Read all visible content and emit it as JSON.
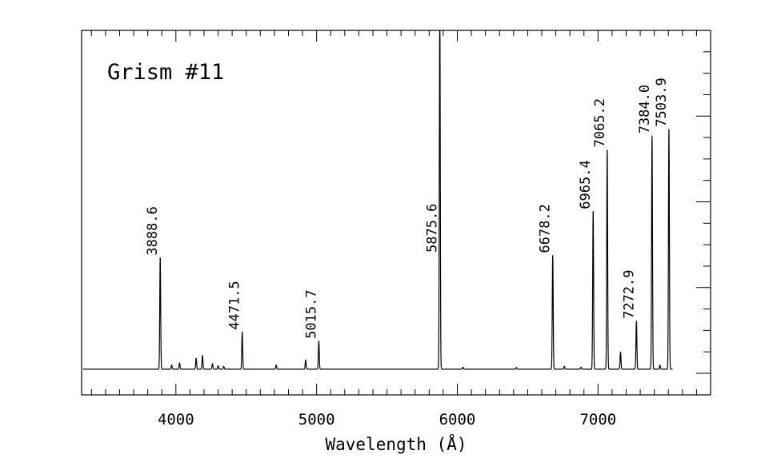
{
  "chart_data": {
    "type": "line",
    "title": "",
    "annotation": "Grism #11",
    "xlabel": "Wavelength (Å)",
    "ylabel": "",
    "xlim": [
      3330,
      7800
    ],
    "ylim": [
      -0.02,
      1.0
    ],
    "x_ticks": [
      4000,
      5000,
      6000,
      7000
    ],
    "x_tick_labels": [
      "4000",
      "5000",
      "6000",
      "7000"
    ],
    "x_minor_step": 100,
    "y_ticks": [
      0.0,
      0.0625,
      0.125,
      0.1875,
      0.25,
      0.3125,
      0.375,
      0.4375,
      0.5,
      0.5625,
      0.625,
      0.6875,
      0.75,
      0.8125,
      0.875,
      0.9375,
      1.0
    ],
    "y_tick_labels_shown": false,
    "grid": false,
    "continuum": 0.012,
    "emission_lines": [
      {
        "wavelength": 3888.6,
        "peak": 0.325,
        "label": "3888.6"
      },
      {
        "wavelength": 4471.5,
        "peak": 0.108,
        "label": "4471.5"
      },
      {
        "wavelength": 5015.7,
        "peak": 0.082,
        "label": "5015.7"
      },
      {
        "wavelength": 5875.6,
        "peak": 1.06,
        "label": "5875.6"
      },
      {
        "wavelength": 6678.2,
        "peak": 0.332,
        "label": "6678.2"
      },
      {
        "wavelength": 6965.4,
        "peak": 0.46,
        "label": "6965.4"
      },
      {
        "wavelength": 7065.2,
        "peak": 0.64,
        "label": "7065.2"
      },
      {
        "wavelength": 7272.9,
        "peak": 0.14,
        "label": "7272.9"
      },
      {
        "wavelength": 7384.0,
        "peak": 0.68,
        "label": "7384.0"
      },
      {
        "wavelength": 7503.9,
        "peak": 0.7,
        "label": "7503.9"
      }
    ],
    "minor_lines": [
      {
        "wavelength": 3970,
        "peak": 0.012
      },
      {
        "wavelength": 4026,
        "peak": 0.018
      },
      {
        "wavelength": 4144,
        "peak": 0.032
      },
      {
        "wavelength": 4189,
        "peak": 0.04
      },
      {
        "wavelength": 4260,
        "peak": 0.016
      },
      {
        "wavelength": 4300,
        "peak": 0.01
      },
      {
        "wavelength": 4340,
        "peak": 0.008
      },
      {
        "wavelength": 4713,
        "peak": 0.012
      },
      {
        "wavelength": 4922,
        "peak": 0.027
      },
      {
        "wavelength": 6040,
        "peak": 0.006
      },
      {
        "wavelength": 6420,
        "peak": 0.005
      },
      {
        "wavelength": 6760,
        "peak": 0.008
      },
      {
        "wavelength": 6880,
        "peak": 0.006
      },
      {
        "wavelength": 7160,
        "peak": 0.05
      },
      {
        "wavelength": 7440,
        "peak": 0.012
      }
    ]
  }
}
